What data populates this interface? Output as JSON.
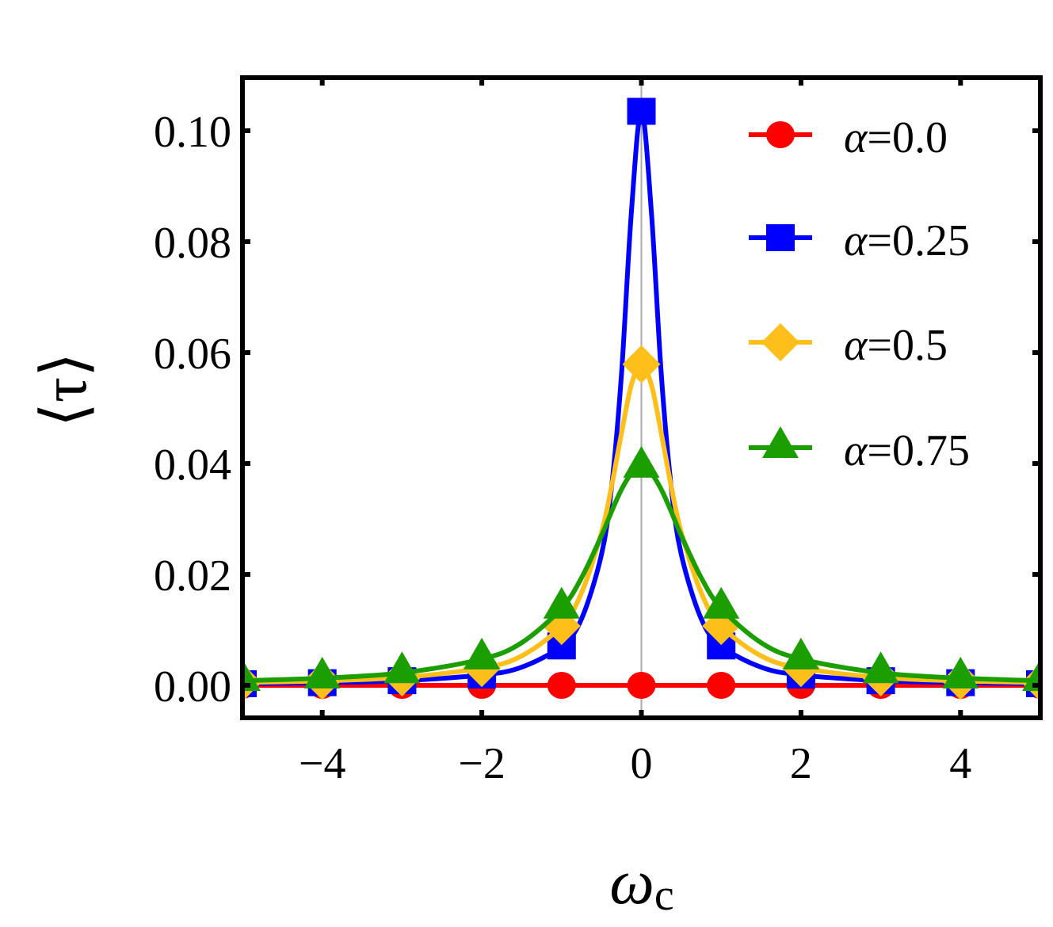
{
  "chart_data": {
    "type": "line",
    "xlabel": "ωc",
    "ylabel": "⟨τ⟩",
    "xlim": [
      -5,
      5
    ],
    "ylim": [
      -0.006,
      0.11
    ],
    "xticks": [
      -4,
      -2,
      0,
      2,
      4
    ],
    "xtick_labels": [
      "−4",
      "−2",
      "0",
      "2",
      "4"
    ],
    "yticks": [
      0.0,
      0.02,
      0.04,
      0.06,
      0.08,
      0.1
    ],
    "ytick_labels": [
      "0.00",
      "0.02",
      "0.04",
      "0.06",
      "0.08",
      "0.10"
    ],
    "grid": false,
    "legend_position": "top-right",
    "marker_x": [
      -5,
      -4,
      -3,
      -2,
      -1,
      0,
      1,
      2,
      3,
      4,
      5
    ],
    "curve_x": [
      -5,
      -4,
      -3,
      -2,
      -1.5,
      -1,
      -0.75,
      -0.5,
      -0.375,
      -0.25,
      -0.125,
      0,
      0.125,
      0.25,
      0.375,
      0.5,
      0.75,
      1,
      1.5,
      2,
      3,
      4,
      5
    ],
    "series": [
      {
        "name": "α=0.0",
        "color": "#ff0000",
        "marker": "circle",
        "curve_y": [
          0,
          0,
          0,
          0,
          0,
          0,
          0,
          0,
          0,
          0,
          0,
          0,
          0,
          0,
          0,
          0,
          0,
          0,
          0,
          0,
          0,
          0,
          0
        ]
      },
      {
        "name": "α=0.25",
        "color": "#0000ff",
        "marker": "square",
        "curve_y": [
          0.0003,
          0.00048,
          0.00084,
          0.00187,
          0.00328,
          0.0071,
          0.012,
          0.0236,
          0.0356,
          0.056,
          0.0854,
          0.1035,
          0.0854,
          0.056,
          0.0356,
          0.0236,
          0.012,
          0.0071,
          0.00328,
          0.00187,
          0.00084,
          0.00048,
          0.0003
        ]
      },
      {
        "name": "α=0.5",
        "color": "#ffbf1a",
        "marker": "diamond",
        "curve_y": [
          0.00052,
          0.00081,
          0.00142,
          0.00311,
          0.00531,
          0.0107,
          0.0167,
          0.0276,
          0.0358,
          0.0454,
          0.0542,
          0.0579,
          0.0542,
          0.0454,
          0.0358,
          0.0276,
          0.0167,
          0.0107,
          0.00531,
          0.00311,
          0.00142,
          0.00081,
          0.00052
        ]
      },
      {
        "name": "α=0.75",
        "color": "#1a9e00",
        "marker": "triangle",
        "curve_y": [
          0.00084,
          0.0013,
          0.00225,
          0.00473,
          0.00769,
          0.0139,
          0.0194,
          0.027,
          0.0313,
          0.0353,
          0.0382,
          0.0393,
          0.0382,
          0.0353,
          0.0313,
          0.027,
          0.0194,
          0.0139,
          0.00769,
          0.00473,
          0.00225,
          0.0013,
          0.00084
        ]
      }
    ]
  }
}
